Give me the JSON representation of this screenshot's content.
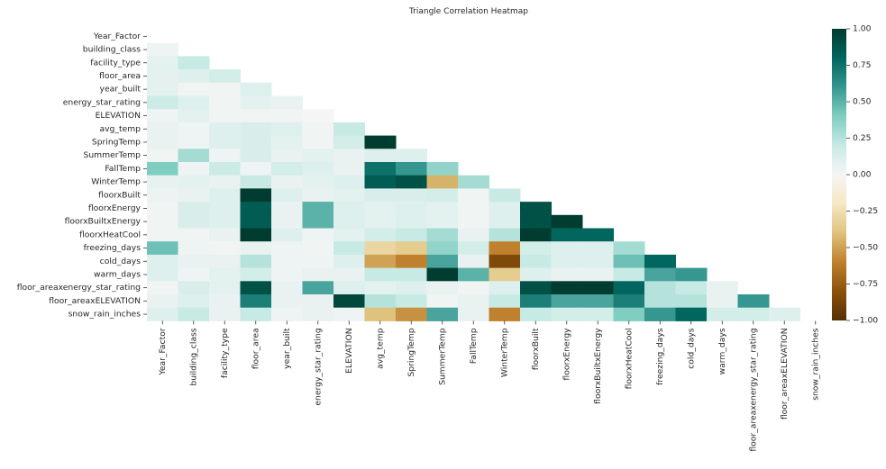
{
  "chart_data": {
    "type": "heatmap",
    "title": "Triangle Correlation Heatmap",
    "labels": [
      "Year_Factor",
      "building_class",
      "facility_type",
      "floor_area",
      "year_built",
      "energy_star_rating",
      "ELEVATION",
      "avg_temp",
      "SpringTemp",
      "SummerTemp",
      "FallTemp",
      "WinterTemp",
      "floorxBuilt",
      "floorxEnergy",
      "floorxBuiltxEnergy",
      "floorxHeatCool",
      "freezing_days",
      "cold_days",
      "warm_days",
      "floor_areaxenergy_star_rating",
      "floor_areaxELEVATION",
      "snow_rain_inches"
    ],
    "mask": "upper triangle incl. diagonal",
    "matrix": [
      [],
      [
        0.03
      ],
      [
        0.08,
        0.2
      ],
      [
        0.07,
        0.1,
        0.15
      ],
      [
        0.08,
        0.02,
        0.02,
        0.1
      ],
      [
        0.18,
        0.1,
        0.02,
        0.08,
        0.05
      ],
      [
        0.03,
        0.08,
        0.02,
        0.02,
        0.02,
        0.0
      ],
      [
        0.05,
        0.03,
        0.1,
        0.12,
        0.1,
        0.02,
        0.2
      ],
      [
        0.05,
        0.03,
        0.1,
        0.12,
        0.08,
        0.02,
        0.15,
        1.0
      ],
      [
        0.02,
        0.3,
        0.03,
        0.12,
        0.05,
        0.08,
        0.05,
        0.1,
        0.1
      ],
      [
        0.4,
        0.03,
        0.18,
        0.03,
        0.15,
        0.1,
        0.05,
        0.75,
        0.6,
        0.35
      ],
      [
        0.06,
        0.08,
        0.05,
        0.2,
        0.05,
        0.08,
        0.1,
        0.85,
        0.9,
        -0.45,
        0.3
      ],
      [
        0.04,
        0.05,
        0.1,
        1.0,
        0.1,
        0.05,
        0.08,
        0.12,
        0.12,
        0.15,
        0.02,
        0.2
      ],
      [
        0.02,
        0.12,
        0.1,
        0.85,
        0.05,
        0.5,
        0.1,
        0.08,
        0.1,
        0.08,
        0.02,
        0.1,
        0.9
      ],
      [
        0.02,
        0.12,
        0.1,
        0.85,
        0.05,
        0.5,
        0.1,
        0.08,
        0.1,
        0.08,
        0.02,
        0.1,
        0.9,
        1.0
      ],
      [
        0.02,
        0.02,
        0.05,
        1.0,
        0.1,
        0.03,
        0.08,
        0.15,
        0.2,
        0.3,
        0.05,
        0.25,
        1.0,
        0.8,
        0.8
      ],
      [
        0.45,
        0.03,
        0.02,
        0.05,
        0.03,
        0.02,
        0.2,
        -0.3,
        -0.35,
        0.35,
        0.15,
        -0.6,
        0.15,
        0.1,
        0.1,
        0.3
      ],
      [
        0.1,
        0.05,
        0.05,
        0.25,
        0.03,
        0.03,
        0.1,
        -0.5,
        -0.6,
        0.55,
        0.05,
        -0.85,
        0.2,
        0.1,
        0.1,
        0.45,
        0.8
      ],
      [
        0.1,
        0.03,
        0.08,
        0.15,
        0.03,
        0.05,
        0.05,
        0.2,
        0.2,
        1.0,
        0.5,
        -0.35,
        0.1,
        0.05,
        0.05,
        0.2,
        0.55,
        0.6
      ],
      [
        0.02,
        0.12,
        0.08,
        0.9,
        0.05,
        0.55,
        0.1,
        0.08,
        0.1,
        0.05,
        0.02,
        0.1,
        0.9,
        1.0,
        1.0,
        0.8,
        0.25,
        0.2,
        0.05
      ],
      [
        0.05,
        0.1,
        0.05,
        0.7,
        0.05,
        0.05,
        0.95,
        0.25,
        0.2,
        0.02,
        0.05,
        0.2,
        0.7,
        0.55,
        0.55,
        0.7,
        0.25,
        0.25,
        0.05,
        0.6
      ],
      [
        0.1,
        0.2,
        0.05,
        0.2,
        0.03,
        0.05,
        0.03,
        -0.4,
        -0.55,
        0.55,
        0.05,
        -0.6,
        0.2,
        0.15,
        0.15,
        0.4,
        0.6,
        0.8,
        0.15,
        0.15,
        0.1
      ]
    ],
    "colorbar": {
      "ticks": [
        "1.00",
        "0.75",
        "0.50",
        "0.25",
        "0.00",
        "−0.25",
        "−0.50",
        "−0.75",
        "−1.00"
      ],
      "range": [
        -1,
        1
      ]
    },
    "colormap": "BrBG"
  }
}
